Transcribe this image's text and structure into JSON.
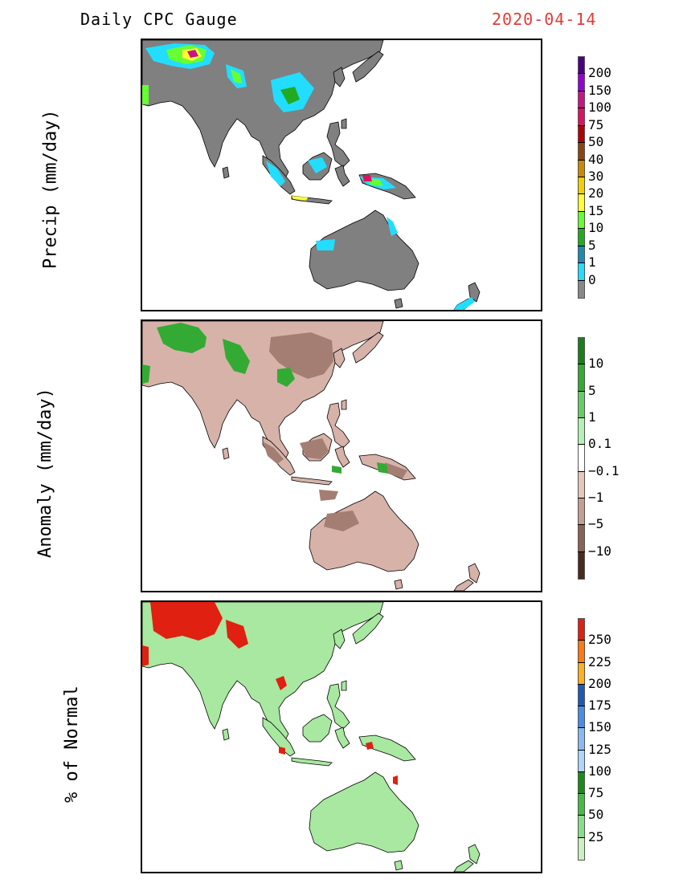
{
  "header": {
    "title": "Daily CPC Gauge",
    "date": "2020-04-14"
  },
  "panels": [
    {
      "id": "precip",
      "ylabel": "Precip (mm/day)",
      "legend": {
        "labels": [
          "200",
          "150",
          "100",
          "75",
          "50",
          "40",
          "30",
          "20",
          "15",
          "10",
          "5",
          "1",
          "0"
        ],
        "colors": [
          "#4b0082",
          "#9400d3",
          "#c71585",
          "#e0115f",
          "#b00000",
          "#8b4513",
          "#cc8800",
          "#f0d000",
          "#ffff33",
          "#66ff33",
          "#22aa22",
          "#1c8bb0",
          "#22ddff",
          "#888888"
        ]
      }
    },
    {
      "id": "anomaly",
      "ylabel": "Anomaly (mm/day)",
      "legend": {
        "labels": [
          "10",
          "5",
          "1",
          "0.1",
          "−0.1",
          "−1",
          "−5",
          "−10"
        ],
        "colors": [
          "#1a7f1a",
          "#33aa33",
          "#66cc66",
          "#b4f0b4",
          "#ffffff",
          "#e4c6bc",
          "#c49e92",
          "#8a6256",
          "#4a2a22"
        ]
      }
    },
    {
      "id": "percent",
      "ylabel": "% of Normal",
      "legend": {
        "labels": [
          "250",
          "225",
          "200",
          "175",
          "150",
          "125",
          "100",
          "75",
          "50",
          "25"
        ],
        "colors": [
          "#e02010",
          "#ff7a10",
          "#ffb020",
          "#1e5ab4",
          "#4a8ce6",
          "#8ab8f0",
          "#b0d4fa",
          "#1a8a1a",
          "#44bb44",
          "#88dd88",
          "#c8f0c0"
        ]
      }
    }
  ],
  "map_colors": {
    "precip_land": "#808080",
    "anom_land": "#d7b2a9",
    "pct_land": "#a8e8a0"
  }
}
